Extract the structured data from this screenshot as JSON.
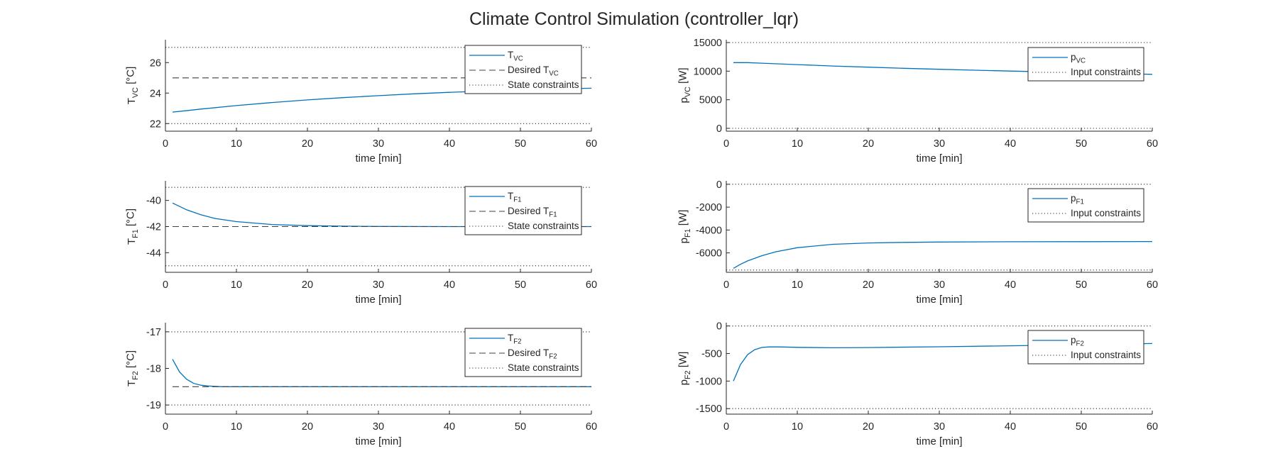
{
  "title": "Climate Control Simulation (controller_lqr)",
  "colors": {
    "series": "#0072BD",
    "reference": "#404040",
    "constraint": "#262626",
    "axis": "#262626"
  },
  "chart_data": [
    {
      "type": "line",
      "panel": "T_VC",
      "ylabel": "T",
      "ylabel_sub": "VC",
      "ylabel_unit": "[°C]",
      "xlabel": "time [min]",
      "xlim": [
        0,
        60
      ],
      "ylim": [
        21.5,
        27.5
      ],
      "xticks": [
        0,
        10,
        20,
        30,
        40,
        50,
        60
      ],
      "yticks": [
        22,
        24,
        26
      ],
      "legend_position": "top-right",
      "series": [
        {
          "name": "T",
          "name_sub": "VC",
          "style": "solid",
          "x": [
            1,
            5,
            10,
            15,
            20,
            25,
            30,
            35,
            40,
            45,
            50,
            55,
            60
          ],
          "y": [
            22.75,
            22.95,
            23.18,
            23.38,
            23.55,
            23.7,
            23.83,
            23.95,
            24.05,
            24.13,
            24.2,
            24.27,
            24.32
          ]
        },
        {
          "name": "Desired T",
          "name_sub": "VC",
          "style": "dashed",
          "x": [
            1,
            60
          ],
          "y": [
            25,
            25
          ]
        },
        {
          "name": "State constraints",
          "style": "dotted",
          "x": [
            0,
            60
          ],
          "y": [
            27,
            27
          ],
          "y2": [
            22,
            22
          ]
        }
      ]
    },
    {
      "type": "line",
      "panel": "T_F1",
      "ylabel": "T",
      "ylabel_sub": "F1",
      "ylabel_unit": "[°C]",
      "xlabel": "time [min]",
      "xlim": [
        0,
        60
      ],
      "ylim": [
        -45.5,
        -38.5
      ],
      "xticks": [
        0,
        10,
        20,
        30,
        40,
        50,
        60
      ],
      "yticks": [
        -40,
        -42,
        -44
      ],
      "legend_position": "top-right",
      "series": [
        {
          "name": "T",
          "name_sub": "F1",
          "style": "solid",
          "x": [
            1,
            3,
            5,
            7,
            10,
            15,
            20,
            25,
            30,
            40,
            50,
            60
          ],
          "y": [
            -40.2,
            -40.72,
            -41.1,
            -41.38,
            -41.62,
            -41.84,
            -41.93,
            -41.97,
            -41.99,
            -42.0,
            -42.0,
            -42.0
          ]
        },
        {
          "name": "Desired T",
          "name_sub": "F1",
          "style": "dashed",
          "x": [
            1,
            60
          ],
          "y": [
            -42,
            -42
          ]
        },
        {
          "name": "State constraints",
          "style": "dotted",
          "x": [
            0,
            60
          ],
          "y": [
            -39,
            -39
          ],
          "y2": [
            -45,
            -45
          ]
        }
      ]
    },
    {
      "type": "line",
      "panel": "T_F2",
      "ylabel": "T",
      "ylabel_sub": "F2",
      "ylabel_unit": "[°C]",
      "xlabel": "time [min]",
      "xlim": [
        0,
        60
      ],
      "ylim": [
        -19.25,
        -16.75
      ],
      "xticks": [
        0,
        10,
        20,
        30,
        40,
        50,
        60
      ],
      "yticks": [
        -17,
        -18,
        -19
      ],
      "legend_position": "top-right",
      "series": [
        {
          "name": "T",
          "name_sub": "F2",
          "style": "solid",
          "x": [
            1,
            2,
            3,
            4,
            5,
            6,
            7,
            8,
            10,
            15,
            20,
            30,
            40,
            50,
            60
          ],
          "y": [
            -17.75,
            -18.1,
            -18.3,
            -18.41,
            -18.46,
            -18.48,
            -18.49,
            -18.5,
            -18.5,
            -18.5,
            -18.5,
            -18.5,
            -18.5,
            -18.5,
            -18.5
          ]
        },
        {
          "name": "Desired T",
          "name_sub": "F2",
          "style": "dashed",
          "x": [
            1,
            60
          ],
          "y": [
            -18.5,
            -18.5
          ]
        },
        {
          "name": "State constraints",
          "style": "dotted",
          "x": [
            0,
            60
          ],
          "y": [
            -17,
            -17
          ],
          "y2": [
            -19,
            -19
          ]
        }
      ]
    },
    {
      "type": "line",
      "panel": "p_VC",
      "ylabel": "p",
      "ylabel_sub": "VC",
      "ylabel_unit": "[W]",
      "xlabel": "time [min]",
      "xlim": [
        0,
        60
      ],
      "ylim": [
        -500,
        15500
      ],
      "xticks": [
        0,
        10,
        20,
        30,
        40,
        50,
        60
      ],
      "yticks": [
        0,
        5000,
        10000,
        15000
      ],
      "legend_position": "top-right",
      "series": [
        {
          "name": "p",
          "name_sub": "VC",
          "style": "solid",
          "x": [
            1,
            3,
            5,
            10,
            15,
            20,
            25,
            30,
            35,
            40,
            45,
            50,
            55,
            60
          ],
          "y": [
            11500,
            11500,
            11400,
            11150,
            10900,
            10700,
            10500,
            10330,
            10170,
            10020,
            9880,
            9740,
            9600,
            9450
          ]
        },
        {
          "name": "Input constraints",
          "style": "dotted",
          "x": [
            0,
            60
          ],
          "y": [
            15000,
            15000
          ],
          "y2": [
            0,
            0
          ]
        }
      ]
    },
    {
      "type": "line",
      "panel": "p_F1",
      "ylabel": "p",
      "ylabel_sub": "F1",
      "ylabel_unit": "[W]",
      "xlabel": "time [min]",
      "xlim": [
        0,
        60
      ],
      "ylim": [
        -7700,
        300
      ],
      "xticks": [
        0,
        10,
        20,
        30,
        40,
        50,
        60
      ],
      "yticks": [
        0,
        -2000,
        -4000,
        -6000
      ],
      "legend_position": "top-right",
      "series": [
        {
          "name": "p",
          "name_sub": "F1",
          "style": "solid",
          "x": [
            1,
            2,
            3,
            5,
            7,
            10,
            15,
            20,
            25,
            30,
            40,
            50,
            60
          ],
          "y": [
            -7350,
            -7000,
            -6700,
            -6250,
            -5900,
            -5550,
            -5250,
            -5130,
            -5080,
            -5050,
            -5030,
            -5020,
            -5010
          ]
        },
        {
          "name": "Input constraints",
          "style": "dotted",
          "x": [
            0,
            60
          ],
          "y": [
            0,
            0
          ],
          "y2": [
            -7500,
            -7500
          ]
        }
      ]
    },
    {
      "type": "line",
      "panel": "p_F2",
      "ylabel": "p",
      "ylabel_sub": "F2",
      "ylabel_unit": "[W]",
      "xlabel": "time [min]",
      "xlim": [
        0,
        60
      ],
      "ylim": [
        -1600,
        60
      ],
      "xticks": [
        0,
        10,
        20,
        30,
        40,
        50,
        60
      ],
      "yticks": [
        0,
        -500,
        -1000,
        -1500
      ],
      "legend_position": "top-right",
      "series": [
        {
          "name": "p",
          "name_sub": "F2",
          "style": "solid",
          "x": [
            1,
            2,
            3,
            4,
            5,
            6,
            7,
            8,
            10,
            15,
            20,
            30,
            40,
            50,
            60
          ],
          "y": [
            -1000,
            -700,
            -520,
            -430,
            -390,
            -380,
            -380,
            -382,
            -388,
            -395,
            -392,
            -378,
            -360,
            -340,
            -318
          ]
        },
        {
          "name": "Input constraints",
          "style": "dotted",
          "x": [
            0,
            60
          ],
          "y": [
            0,
            0
          ],
          "y2": [
            -1500,
            -1500
          ]
        }
      ]
    }
  ]
}
